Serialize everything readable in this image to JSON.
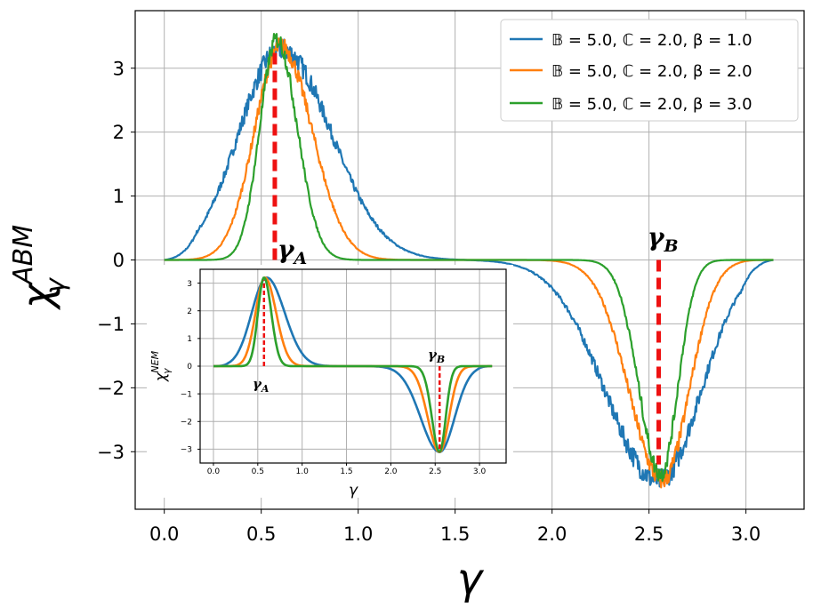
{
  "chart_data": [
    {
      "type": "line",
      "title": "",
      "xlabel": "γ",
      "ylabel": "χ_γ^ABM",
      "xlim": [
        -0.15,
        3.3
      ],
      "ylim": [
        -3.9,
        3.9
      ],
      "xticks": [
        0.0,
        0.5,
        1.0,
        1.5,
        2.0,
        2.5,
        3.0
      ],
      "yticks": [
        -3,
        -2,
        -1,
        0,
        1,
        2,
        3
      ],
      "xtick_labels": [
        "0.0",
        "0.5",
        "1.0",
        "1.5",
        "2.0",
        "2.5",
        "3.0"
      ],
      "ytick_labels": [
        "−3",
        "−2",
        "−1",
        "0",
        "1",
        "2",
        "3"
      ],
      "grid": true,
      "legend_position": "top-right",
      "x_range": [
        0.0,
        3.14159
      ],
      "series": [
        {
          "name": "𝔹 = 5.0, ℂ = 2.0, β = 1.0",
          "color": "#1f77b4",
          "peak_x": 0.6,
          "peak_y": 3.3,
          "trough_x": 2.55,
          "trough_y": -3.45,
          "noisy": true
        },
        {
          "name": "𝔹 = 5.0, ℂ = 2.0, β = 2.0",
          "color": "#ff7f0e",
          "peak_x": 0.6,
          "peak_y": 3.35,
          "trough_x": 2.57,
          "trough_y": -3.45,
          "noisy": true
        },
        {
          "name": "𝔹 = 5.0, ℂ = 2.0, β = 3.0",
          "color": "#2ca02c",
          "peak_x": 0.58,
          "peak_y": 3.45,
          "trough_x": 2.56,
          "trough_y": -3.35,
          "noisy": true
        }
      ],
      "markers": [
        {
          "label": "γ_A",
          "x": 0.57,
          "y_from": 0.0,
          "y_to": 3.3,
          "color": "#ee1111"
        },
        {
          "label": "γ_B",
          "x": 2.55,
          "y_from": 0.0,
          "y_to": -3.2,
          "color": "#ee1111"
        }
      ]
    },
    {
      "type": "line",
      "title": "",
      "xlabel": "γ",
      "ylabel": "χ_γ^NEM",
      "xlim": [
        -0.15,
        3.3
      ],
      "ylim": [
        -3.5,
        3.5
      ],
      "xticks": [
        0.0,
        0.5,
        1.0,
        1.5,
        2.0,
        2.5,
        3.0
      ],
      "yticks": [
        -3,
        -2,
        -1,
        0,
        1,
        2,
        3
      ],
      "xtick_labels": [
        "0.0",
        "0.5",
        "1.0",
        "1.5",
        "2.0",
        "2.5",
        "3.0"
      ],
      "ytick_labels": [
        "−3",
        "−2",
        "−1",
        "0",
        "1",
        "2",
        "3"
      ],
      "grid": true,
      "x_range": [
        0.0,
        3.14159
      ],
      "series": [
        {
          "color": "#1f77b4",
          "peak_x": 0.6,
          "peak_y": 3.2,
          "trough_x": 2.55,
          "trough_y": -3.1,
          "noisy": false
        },
        {
          "color": "#ff7f0e",
          "peak_x": 0.58,
          "peak_y": 3.2,
          "trough_x": 2.55,
          "trough_y": -3.1,
          "noisy": false
        },
        {
          "color": "#2ca02c",
          "peak_x": 0.57,
          "peak_y": 3.2,
          "trough_x": 2.55,
          "trough_y": -3.1,
          "noisy": false
        }
      ],
      "markers": [
        {
          "label": "γ_A",
          "x": 0.57,
          "y_from": 0.0,
          "y_to": 3.1,
          "color": "#ee1111"
        },
        {
          "label": "γ_B",
          "x": 2.55,
          "y_from": 0.0,
          "y_to": -3.1,
          "color": "#ee1111"
        }
      ]
    }
  ]
}
